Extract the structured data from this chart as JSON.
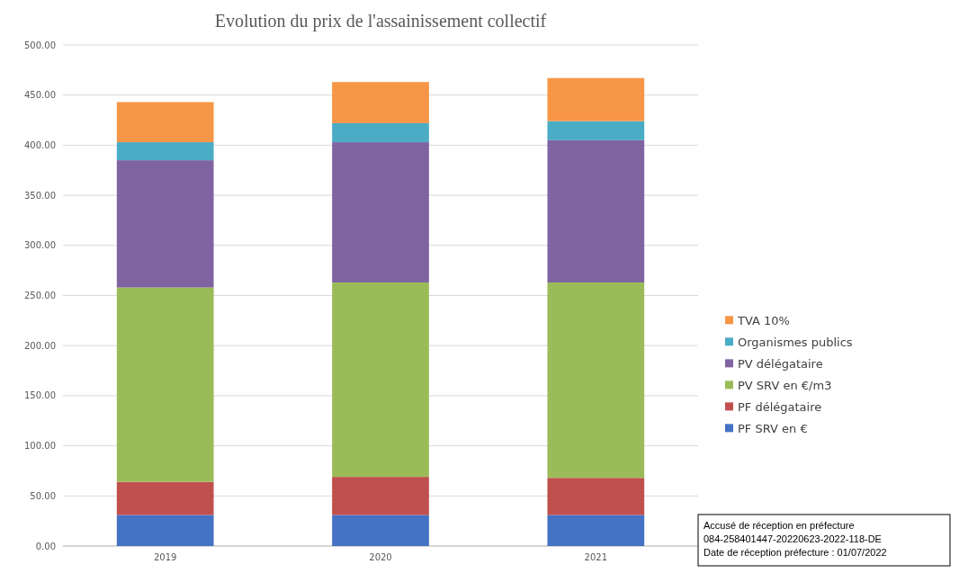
{
  "chart_data": {
    "type": "bar",
    "title": "Evolution du prix de l'assainissement collectif",
    "categories": [
      "2019",
      "2020",
      "2021"
    ],
    "stacked": true,
    "series": [
      {
        "name": "PF SRV en €",
        "color": "#4472c4",
        "values": [
          31,
          31,
          31
        ]
      },
      {
        "name": "PF délégataire",
        "color": "#c0504d",
        "values": [
          33,
          38,
          37
        ]
      },
      {
        "name": "PV SRV en €/m3",
        "color": "#9bbb59",
        "values": [
          194,
          194,
          195
        ]
      },
      {
        "name": "PV délégataire",
        "color": "#8064a2",
        "values": [
          127,
          140,
          142
        ]
      },
      {
        "name": "Organismes publics",
        "color": "#4bacc6",
        "values": [
          18,
          19,
          19
        ]
      },
      {
        "name": "TVA 10%",
        "color": "#f79646",
        "values": [
          40,
          41,
          43
        ]
      }
    ],
    "ylim": [
      0,
      500
    ],
    "yticks": [
      {
        "value": 0,
        "label": "0.00"
      },
      {
        "value": 50,
        "label": "50.00"
      },
      {
        "value": 100,
        "label": "100.00"
      },
      {
        "value": 150,
        "label": "150.00"
      },
      {
        "value": 200,
        "label": "200.00"
      },
      {
        "value": 250,
        "label": "250.00"
      },
      {
        "value": 300,
        "label": "300.00"
      },
      {
        "value": 350,
        "label": "350.00"
      },
      {
        "value": 400,
        "label": "400.00"
      },
      {
        "value": 450,
        "label": "450.00"
      },
      {
        "value": 500,
        "label": "500.00"
      }
    ],
    "grid": "y",
    "legend": "right",
    "annotations": [
      "Accusé de réception en préfecture\n084-258401447-20220623-2022-118-DE\nDate de réception préfecture : 01/07/2022"
    ]
  }
}
